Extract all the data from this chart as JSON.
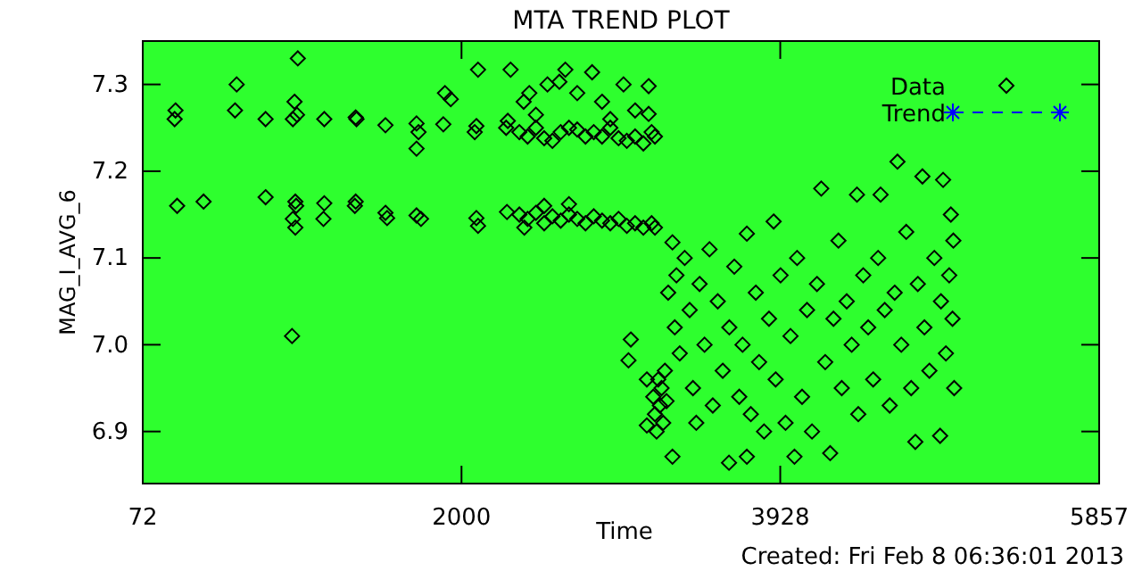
{
  "chart_data": {
    "type": "scatter",
    "title": "MTA TREND PLOT",
    "xlabel": "Time",
    "ylabel": "MAG_I_AVG_6",
    "annotations": [
      "Created: Fri Feb  8 06:36:01 2013"
    ],
    "xlim": [
      72,
      5857
    ],
    "xticks": [
      72,
      2000,
      3928,
      5857
    ],
    "ylim": [
      6.84,
      7.35
    ],
    "yticks": [
      {
        "value": 6.9,
        "label": "6.9"
      },
      {
        "value": 7.0,
        "label": "7.0"
      },
      {
        "value": 7.1,
        "label": "7.1"
      },
      {
        "value": 7.2,
        "label": "7.2"
      },
      {
        "value": 7.3,
        "label": "7.3"
      }
    ],
    "grid": false,
    "legend": "top right",
    "series": [
      {
        "name": "Data",
        "marker": "diamond",
        "color": "#000000",
        "x": [
          270,
          265,
          280,
          440,
          640,
          630,
          815,
          815,
          1010,
          990,
          1005,
          980,
          995,
          1000,
          980,
          995,
          975,
          1170,
          1170,
          1165,
          1360,
          1365,
          1360,
          1355,
          1540,
          1540,
          1550,
          1728,
          1740,
          1728,
          1728,
          1755,
          1890,
          1900,
          1935,
          2100,
          2090,
          2080,
          2090,
          2100,
          2297,
          2280,
          2275,
          2270,
          2350,
          2400,
          2450,
          2500,
          2550,
          2600,
          2650,
          2700,
          2750,
          2800,
          2850,
          2900,
          2950,
          3000,
          3050,
          3100,
          3150,
          3170,
          2376,
          2410,
          2450,
          2520,
          2592,
          2628,
          2700,
          2790,
          2850,
          2980,
          3050,
          3132,
          3132,
          2900,
          2350,
          2400,
          2450,
          2500,
          2550,
          2600,
          2650,
          2700,
          2750,
          2800,
          2850,
          2900,
          2950,
          3000,
          3050,
          3100,
          3150,
          3170,
          2500,
          2650,
          2380,
          3024,
          3010,
          3121,
          3121,
          3160,
          3170,
          3180,
          3190,
          3200,
          3210,
          3220,
          3230,
          3240,
          3276,
          3276,
          3250,
          3290,
          3300,
          3320,
          3350,
          3380,
          3400,
          3420,
          3440,
          3470,
          3500,
          3520,
          3550,
          3580,
          3618,
          3620,
          3650,
          3680,
          3700,
          3726,
          3726,
          3750,
          3780,
          3800,
          3830,
          3860,
          3888,
          3900,
          3930,
          3960,
          3990,
          4014,
          4030,
          4060,
          4090,
          4120,
          4150,
          4176,
          4200,
          4230,
          4250,
          4280,
          4300,
          4330,
          4360,
          4392,
          4400,
          4430,
          4460,
          4490,
          4520,
          4535,
          4560,
          4590,
          4620,
          4637,
          4660,
          4690,
          4720,
          4745,
          4760,
          4788,
          4800,
          4830,
          4860,
          4895,
          4900,
          4913,
          4930,
          4950,
          4960,
          4970,
          4980,
          4975
        ],
        "values": [
          7.27,
          7.26,
          7.16,
          7.165,
          7.3,
          7.27,
          7.26,
          7.17,
          7.33,
          7.28,
          7.265,
          7.26,
          7.165,
          7.16,
          7.145,
          7.135,
          7.01,
          7.26,
          7.163,
          7.145,
          7.262,
          7.26,
          7.165,
          7.16,
          7.253,
          7.152,
          7.146,
          7.255,
          7.245,
          7.226,
          7.149,
          7.145,
          7.254,
          7.29,
          7.283,
          7.317,
          7.252,
          7.245,
          7.146,
          7.137,
          7.317,
          7.258,
          7.153,
          7.25,
          7.245,
          7.24,
          7.25,
          7.238,
          7.235,
          7.245,
          7.25,
          7.248,
          7.24,
          7.245,
          7.24,
          7.25,
          7.238,
          7.235,
          7.24,
          7.232,
          7.245,
          7.24,
          7.28,
          7.29,
          7.265,
          7.3,
          7.303,
          7.317,
          7.29,
          7.314,
          7.28,
          7.3,
          7.27,
          7.298,
          7.266,
          7.26,
          7.15,
          7.145,
          7.152,
          7.14,
          7.148,
          7.143,
          7.15,
          7.145,
          7.14,
          7.148,
          7.143,
          7.14,
          7.145,
          7.137,
          7.14,
          7.135,
          7.14,
          7.135,
          7.16,
          7.162,
          7.135,
          7.006,
          6.982,
          6.96,
          6.907,
          6.94,
          6.92,
          6.9,
          6.96,
          6.93,
          6.95,
          6.91,
          6.97,
          6.935,
          7.118,
          6.871,
          7.06,
          7.02,
          7.08,
          6.99,
          7.1,
          7.04,
          6.95,
          6.91,
          7.07,
          7.0,
          7.11,
          6.93,
          7.05,
          6.97,
          6.864,
          7.02,
          7.09,
          6.94,
          7.0,
          6.871,
          7.128,
          6.92,
          7.06,
          6.98,
          6.9,
          7.03,
          7.142,
          6.96,
          7.08,
          6.91,
          7.01,
          6.871,
          7.1,
          6.94,
          7.04,
          6.9,
          7.07,
          7.18,
          6.98,
          6.875,
          7.03,
          7.12,
          6.95,
          7.05,
          7.0,
          7.173,
          6.92,
          7.08,
          7.02,
          6.96,
          7.1,
          7.173,
          7.04,
          6.93,
          7.06,
          7.211,
          7.0,
          7.13,
          6.95,
          6.888,
          7.07,
          7.194,
          7.02,
          6.97,
          7.1,
          6.895,
          7.05,
          7.19,
          6.99,
          7.08,
          7.15,
          7.03,
          6.95,
          7.12
        ]
      },
      {
        "name": "Trend",
        "type": "line",
        "marker": "star",
        "line_style": "dashed",
        "color": "#0000ff"
      }
    ]
  }
}
